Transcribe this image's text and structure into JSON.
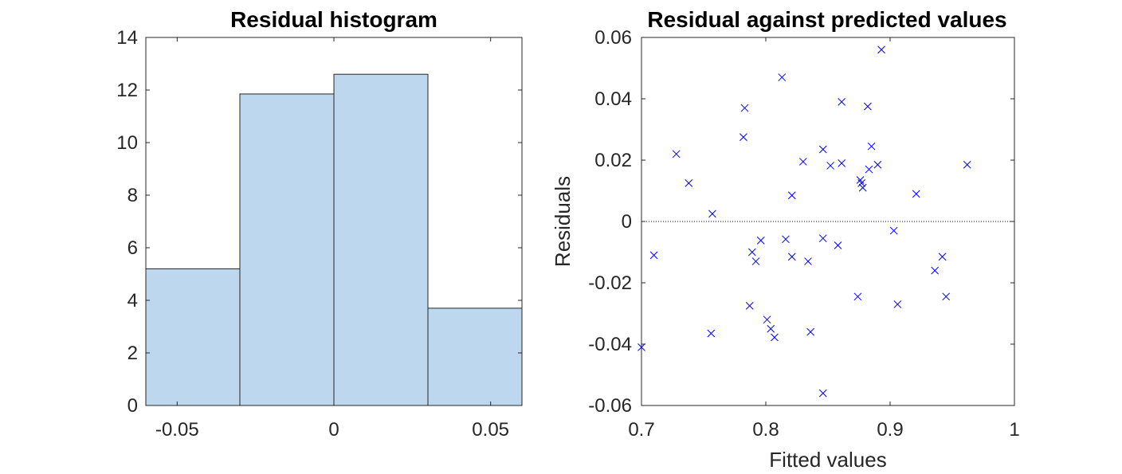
{
  "chart_data": [
    {
      "type": "bar",
      "title": "Residual histogram",
      "xlabel": "",
      "ylabel": "",
      "bin_edges": [
        -0.06,
        -0.03,
        0,
        0.03,
        0.06
      ],
      "values": [
        5.2,
        11.85,
        12.6,
        3.7
      ],
      "xlim": [
        -0.06,
        0.06
      ],
      "ylim": [
        0,
        14
      ],
      "xticks": [
        -0.05,
        0,
        0.05
      ],
      "xtick_labels": [
        "-0.05",
        "0",
        "0.05"
      ],
      "yticks": [
        0,
        2,
        4,
        6,
        8,
        10,
        12,
        14
      ],
      "ytick_labels": [
        "0",
        "2",
        "4",
        "6",
        "8",
        "10",
        "12",
        "14"
      ],
      "grid": false,
      "colors": {
        "bar_fill": "#bdd7ee",
        "bar_edge": "#262626"
      }
    },
    {
      "type": "scatter",
      "title": "Residual against predicted values",
      "xlabel": "Fitted values",
      "ylabel": "Residuals",
      "xlim": [
        0.7,
        1
      ],
      "ylim": [
        -0.06,
        0.06
      ],
      "xticks": [
        0.7,
        0.8,
        0.9,
        1
      ],
      "xtick_labels": [
        "0.7",
        "0.8",
        "0.9",
        "1"
      ],
      "yticks": [
        -0.06,
        -0.04,
        -0.02,
        0,
        0.02,
        0.04,
        0.06
      ],
      "ytick_labels": [
        "-0.06",
        "-0.04",
        "-0.02",
        "0",
        "0.02",
        "0.04",
        "0.06"
      ],
      "reference_line": {
        "y": 0,
        "style": "dotted"
      },
      "marker": "x",
      "grid": false,
      "colors": {
        "marker": "#0000ff",
        "reference": "#000000"
      },
      "points": [
        [
          0.7,
          -0.041
        ],
        [
          0.71,
          -0.011
        ],
        [
          0.728,
          0.022
        ],
        [
          0.738,
          0.0125
        ],
        [
          0.756,
          -0.0365
        ],
        [
          0.757,
          0.0025
        ],
        [
          0.782,
          0.0275
        ],
        [
          0.783,
          0.037
        ],
        [
          0.787,
          -0.0275
        ],
        [
          0.789,
          -0.01
        ],
        [
          0.792,
          -0.013
        ],
        [
          0.796,
          -0.0062
        ],
        [
          0.801,
          -0.032
        ],
        [
          0.804,
          -0.035
        ],
        [
          0.807,
          -0.0378
        ],
        [
          0.813,
          0.047
        ],
        [
          0.816,
          -0.0058
        ],
        [
          0.821,
          -0.0115
        ],
        [
          0.821,
          0.0085
        ],
        [
          0.83,
          0.0195
        ],
        [
          0.834,
          -0.013
        ],
        [
          0.836,
          -0.036
        ],
        [
          0.846,
          -0.0055
        ],
        [
          0.846,
          0.0235
        ],
        [
          0.846,
          -0.056
        ],
        [
          0.852,
          0.0182
        ],
        [
          0.858,
          -0.0078
        ],
        [
          0.861,
          0.019
        ],
        [
          0.861,
          0.039
        ],
        [
          0.874,
          -0.0245
        ],
        [
          0.876,
          0.0135
        ],
        [
          0.877,
          0.0125
        ],
        [
          0.878,
          0.011
        ],
        [
          0.882,
          0.0375
        ],
        [
          0.883,
          0.017
        ],
        [
          0.885,
          0.0245
        ],
        [
          0.89,
          0.0185
        ],
        [
          0.893,
          0.056
        ],
        [
          0.903,
          -0.003
        ],
        [
          0.906,
          -0.027
        ],
        [
          0.921,
          0.009
        ],
        [
          0.936,
          -0.016
        ],
        [
          0.942,
          -0.0115
        ],
        [
          0.945,
          -0.0245
        ],
        [
          0.962,
          0.0185
        ]
      ]
    }
  ]
}
